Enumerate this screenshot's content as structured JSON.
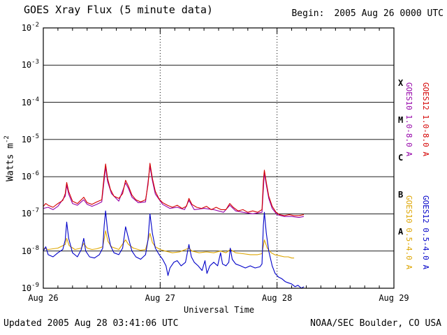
{
  "header": {
    "title": "GOES Xray Flux (5 minute data)",
    "begin_label": "Begin:",
    "begin_value": "2005 Aug 26 0000 UTC"
  },
  "footer": {
    "updated": "Updated 2005 Aug 28 03:41:06 UTC",
    "source": "NOAA/SEC Boulder, CO USA"
  },
  "chart_data": {
    "type": "line",
    "title": "GOES Xray Flux (5 minute data)",
    "xlabel": "Universal Time",
    "ylabel": "Watts m",
    "ylabel_exp": "-2",
    "y_scale": "log",
    "y_tick_base": "10",
    "y_tick_exponents": [
      -2,
      -3,
      -4,
      -5,
      -6,
      -7,
      -8,
      -9
    ],
    "ylim_exponents": [
      -9,
      -2
    ],
    "x_range_hours": [
      0,
      72
    ],
    "x_ticks": [
      {
        "t": 0,
        "label": "Aug 26"
      },
      {
        "t": 24,
        "label": "Aug 27"
      },
      {
        "t": 48,
        "label": "Aug 28"
      },
      {
        "t": 72,
        "label": "Aug 29"
      }
    ],
    "day_dividers_hours": [
      24,
      48
    ],
    "flare_classes": [
      {
        "label": "X",
        "exp": -3.5
      },
      {
        "label": "M",
        "exp": -4.5
      },
      {
        "label": "C",
        "exp": -5.5
      },
      {
        "label": "B",
        "exp": -6.5
      },
      {
        "label": "A",
        "exp": -7.5
      }
    ],
    "series": [
      {
        "name": "GOES10 1.0-8.0 A",
        "color": "#9400a8",
        "band": "long",
        "points": [
          [
            0,
            1.4e-07
          ],
          [
            1,
            1.5e-07
          ],
          [
            2,
            1.3e-07
          ],
          [
            3,
            1.6e-07
          ],
          [
            4.5,
            3e-07
          ],
          [
            4.8,
            6e-07
          ],
          [
            5.2,
            3.4e-07
          ],
          [
            6,
            1.9e-07
          ],
          [
            7,
            1.7e-07
          ],
          [
            8.3,
            2.4e-07
          ],
          [
            9,
            1.8e-07
          ],
          [
            10,
            1.6e-07
          ],
          [
            11,
            1.8e-07
          ],
          [
            12,
            2.1e-07
          ],
          [
            12.8,
            1.8e-06
          ],
          [
            13.2,
            7.5e-07
          ],
          [
            14,
            3.5e-07
          ],
          [
            15.5,
            2.2e-07
          ],
          [
            16.9,
            6.8e-07
          ],
          [
            17.5,
            4.8e-07
          ],
          [
            18.2,
            2.8e-07
          ],
          [
            19.5,
            2e-07
          ],
          [
            21,
            2.1e-07
          ],
          [
            21.9,
            1.9e-06
          ],
          [
            22.4,
            7.8e-07
          ],
          [
            23,
            3.4e-07
          ],
          [
            24.5,
            1.8e-07
          ],
          [
            26,
            1.4e-07
          ],
          [
            27.5,
            1.5e-07
          ],
          [
            29,
            1.3e-07
          ],
          [
            29.9,
            2.3e-07
          ],
          [
            31,
            1.3e-07
          ],
          [
            33,
            1.4e-07
          ],
          [
            35,
            1.3e-07
          ],
          [
            37,
            1.1e-07
          ],
          [
            38.3,
            1.7e-07
          ],
          [
            39.5,
            1.2e-07
          ],
          [
            41,
            1.1e-07
          ],
          [
            43,
            1e-07
          ],
          [
            44.9,
            1.1e-07
          ],
          [
            45.4,
            1.3e-06
          ],
          [
            45.8,
            6e-07
          ],
          [
            46.3,
            2.6e-07
          ],
          [
            47,
            1.4e-07
          ],
          [
            48,
            9.5e-08
          ],
          [
            49.5,
            8.5e-08
          ],
          [
            51,
            8.5e-08
          ],
          [
            52.5,
            8e-08
          ],
          [
            53.5,
            8.5e-08
          ]
        ]
      },
      {
        "name": "GOES12 1.0-8.0 A",
        "color": "#d40000",
        "band": "long",
        "points": [
          [
            0,
            1.6e-07
          ],
          [
            0.5,
            1.9e-07
          ],
          [
            1,
            1.7e-07
          ],
          [
            2,
            1.5e-07
          ],
          [
            3,
            1.9e-07
          ],
          [
            4,
            2.3e-07
          ],
          [
            4.5,
            3.5e-07
          ],
          [
            4.8,
            7e-07
          ],
          [
            5.2,
            4e-07
          ],
          [
            6,
            2.2e-07
          ],
          [
            7,
            1.9e-07
          ],
          [
            7.8,
            2.4e-07
          ],
          [
            8.3,
            2.8e-07
          ],
          [
            9,
            2e-07
          ],
          [
            10,
            1.8e-07
          ],
          [
            11,
            2.1e-07
          ],
          [
            12,
            2.4e-07
          ],
          [
            12.5,
            1.1e-06
          ],
          [
            12.8,
            2.2e-06
          ],
          [
            13.2,
            9e-07
          ],
          [
            13.8,
            4.5e-07
          ],
          [
            14.5,
            3e-07
          ],
          [
            15.5,
            2.6e-07
          ],
          [
            16.3,
            3.5e-07
          ],
          [
            16.9,
            8e-07
          ],
          [
            17.5,
            5.5e-07
          ],
          [
            18.2,
            3.2e-07
          ],
          [
            19,
            2.4e-07
          ],
          [
            20,
            2.1e-07
          ],
          [
            21,
            2.4e-07
          ],
          [
            21.5,
            6e-07
          ],
          [
            21.9,
            2.3e-06
          ],
          [
            22.4,
            9e-07
          ],
          [
            23,
            4e-07
          ],
          [
            23.8,
            2.5e-07
          ],
          [
            24.5,
            2e-07
          ],
          [
            25.5,
            1.7e-07
          ],
          [
            26.5,
            1.5e-07
          ],
          [
            27.5,
            1.7e-07
          ],
          [
            28.5,
            1.4e-07
          ],
          [
            29.4,
            1.6e-07
          ],
          [
            29.9,
            2.6e-07
          ],
          [
            30.5,
            1.8e-07
          ],
          [
            31.5,
            1.5e-07
          ],
          [
            32.5,
            1.4e-07
          ],
          [
            33.5,
            1.6e-07
          ],
          [
            34.5,
            1.3e-07
          ],
          [
            35.5,
            1.5e-07
          ],
          [
            36.5,
            1.3e-07
          ],
          [
            37.5,
            1.3e-07
          ],
          [
            38.3,
            1.9e-07
          ],
          [
            39,
            1.5e-07
          ],
          [
            40,
            1.2e-07
          ],
          [
            41,
            1.3e-07
          ],
          [
            42,
            1.1e-07
          ],
          [
            43,
            1.2e-07
          ],
          [
            44,
            1.1e-07
          ],
          [
            44.9,
            1.3e-07
          ],
          [
            45.2,
            8e-07
          ],
          [
            45.4,
            1.5e-06
          ],
          [
            45.8,
            7e-07
          ],
          [
            46.3,
            3e-07
          ],
          [
            47,
            1.6e-07
          ],
          [
            47.8,
            1.1e-07
          ],
          [
            48.5,
            9.5e-08
          ],
          [
            49.5,
            9e-08
          ],
          [
            50.5,
            9.5e-08
          ],
          [
            51.5,
            9e-08
          ],
          [
            52.5,
            9e-08
          ],
          [
            53.5,
            9.5e-08
          ]
        ]
      },
      {
        "name": "GOES10 0.5-4.0 A",
        "color": "#dda500",
        "band": "short",
        "points": [
          [
            0,
            1.2e-08
          ],
          [
            1,
            1.1e-08
          ],
          [
            2,
            1.15e-08
          ],
          [
            3,
            1.2e-08
          ],
          [
            4.5,
            1.5e-08
          ],
          [
            4.8,
            2.2e-08
          ],
          [
            5.3,
            1.4e-08
          ],
          [
            6.5,
            1.1e-08
          ],
          [
            7.8,
            1.2e-08
          ],
          [
            8.3,
            1.6e-08
          ],
          [
            9,
            1.2e-08
          ],
          [
            10,
            1.1e-08
          ],
          [
            11,
            1.15e-08
          ],
          [
            12.2,
            1.3e-08
          ],
          [
            12.8,
            3.5e-08
          ],
          [
            13.3,
            1.8e-08
          ],
          [
            14,
            1.3e-08
          ],
          [
            15.5,
            1.1e-08
          ],
          [
            16.9,
            2e-08
          ],
          [
            17.5,
            1.5e-08
          ],
          [
            18.5,
            1.2e-08
          ],
          [
            20,
            1.05e-08
          ],
          [
            21,
            1.1e-08
          ],
          [
            21.9,
            3e-08
          ],
          [
            22.4,
            1.7e-08
          ],
          [
            23,
            1.3e-08
          ],
          [
            24,
            1.1e-08
          ],
          [
            25,
            1e-08
          ],
          [
            26.5,
            9e-09
          ],
          [
            28,
            9.5e-09
          ],
          [
            29.9,
            1.2e-08
          ],
          [
            30.5,
            1e-08
          ],
          [
            32,
            9e-09
          ],
          [
            33.5,
            9.5e-09
          ],
          [
            35,
            9e-09
          ],
          [
            36.4,
            1e-08
          ],
          [
            37.5,
            9e-09
          ],
          [
            38.4,
            1.1e-08
          ],
          [
            39.5,
            9e-09
          ],
          [
            41,
            8.5e-09
          ],
          [
            42.5,
            8e-09
          ],
          [
            44,
            8e-09
          ],
          [
            44.9,
            8.5e-09
          ],
          [
            45.4,
            2e-08
          ],
          [
            46,
            1.2e-08
          ],
          [
            46.8,
            9e-09
          ],
          [
            47.5,
            8e-09
          ],
          [
            48.5,
            7.5e-09
          ],
          [
            49.5,
            7e-09
          ],
          [
            50.3,
            7e-09
          ],
          [
            51,
            6.5e-09
          ],
          [
            51.5,
            6.5e-09
          ]
        ]
      },
      {
        "name": "GOES12 0.5-4.0 A",
        "color": "#0000c8",
        "band": "short",
        "points": [
          [
            0,
            1e-08
          ],
          [
            0.5,
            1.3e-08
          ],
          [
            1,
            8e-09
          ],
          [
            2,
            7e-09
          ],
          [
            3,
            9e-09
          ],
          [
            4,
            1.1e-08
          ],
          [
            4.5,
            2e-08
          ],
          [
            4.8,
            6e-08
          ],
          [
            5.2,
            2.2e-08
          ],
          [
            6,
            9e-09
          ],
          [
            7,
            7e-09
          ],
          [
            7.8,
            1.1e-08
          ],
          [
            8.3,
            2.2e-08
          ],
          [
            8.7,
            1e-08
          ],
          [
            9.5,
            7e-09
          ],
          [
            10.5,
            6.5e-09
          ],
          [
            11.5,
            8e-09
          ],
          [
            12.2,
            1.2e-08
          ],
          [
            12.5,
            5e-08
          ],
          [
            12.8,
            1.2e-07
          ],
          [
            13.2,
            3.5e-08
          ],
          [
            13.8,
            1.4e-08
          ],
          [
            14.5,
            9e-09
          ],
          [
            15.5,
            8e-09
          ],
          [
            16.3,
            1.2e-08
          ],
          [
            16.9,
            4.5e-08
          ],
          [
            17.5,
            2.2e-08
          ],
          [
            18.2,
            1e-08
          ],
          [
            19,
            7e-09
          ],
          [
            20,
            6e-09
          ],
          [
            21,
            8e-09
          ],
          [
            21.5,
            2e-08
          ],
          [
            21.9,
            1e-07
          ],
          [
            22.4,
            3e-08
          ],
          [
            23,
            1.2e-08
          ],
          [
            23.8,
            8e-09
          ],
          [
            24.5,
            6e-09
          ],
          [
            25.2,
            4e-09
          ],
          [
            25.6,
            2.2e-09
          ],
          [
            26,
            3.5e-09
          ],
          [
            26.8,
            5e-09
          ],
          [
            27.5,
            5.5e-09
          ],
          [
            28.3,
            4e-09
          ],
          [
            29.2,
            5e-09
          ],
          [
            29.9,
            1.5e-08
          ],
          [
            30.4,
            7e-09
          ],
          [
            31,
            5e-09
          ],
          [
            31.8,
            4e-09
          ],
          [
            32.6,
            3e-09
          ],
          [
            33.2,
            5.5e-09
          ],
          [
            33.6,
            2.5e-09
          ],
          [
            34.2,
            4e-09
          ],
          [
            35,
            5e-09
          ],
          [
            35.8,
            4e-09
          ],
          [
            36.4,
            9e-09
          ],
          [
            36.8,
            4.5e-09
          ],
          [
            37.5,
            4e-09
          ],
          [
            38.1,
            5e-09
          ],
          [
            38.4,
            1.2e-08
          ],
          [
            38.8,
            6e-09
          ],
          [
            39.5,
            4.5e-09
          ],
          [
            40.5,
            4e-09
          ],
          [
            41.5,
            3.5e-09
          ],
          [
            42.5,
            4e-09
          ],
          [
            43.5,
            3.5e-09
          ],
          [
            44.5,
            3.8e-09
          ],
          [
            44.9,
            4.5e-09
          ],
          [
            45.2,
            5e-08
          ],
          [
            45.4,
            1.1e-07
          ],
          [
            45.8,
            3e-08
          ],
          [
            46.3,
            1e-08
          ],
          [
            47,
            4e-09
          ],
          [
            47.6,
            2.5e-09
          ],
          [
            48.3,
            2e-09
          ],
          [
            49,
            1.8e-09
          ],
          [
            49.7,
            1.5e-09
          ],
          [
            50.3,
            1.4e-09
          ],
          [
            51,
            1.3e-09
          ],
          [
            51.7,
            1.1e-09
          ],
          [
            52.3,
            1.2e-09
          ],
          [
            53,
            1e-09
          ],
          [
            53.5,
            1.1e-09
          ]
        ]
      }
    ]
  }
}
